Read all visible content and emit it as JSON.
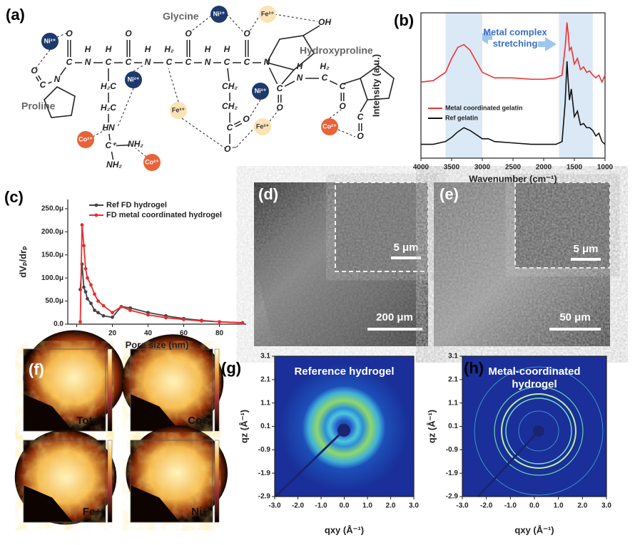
{
  "diagram": {
    "label": "(a)",
    "names": [
      "Glycine",
      "Hydroxyproline",
      "Proline"
    ],
    "atoms": [
      "O",
      "C",
      "N",
      "H",
      "C",
      "H",
      "C",
      "O",
      "N",
      "H",
      "C",
      "H₂",
      "C",
      "O",
      "N",
      "H",
      "C",
      "H",
      "C",
      "O",
      "N",
      "OH",
      "H₂C",
      "H₂C",
      "HN",
      "C⁺",
      "NH₂",
      "NH₂",
      "CH₂",
      "CH₂",
      "C",
      "O",
      "O⁻",
      "C",
      "O",
      "N",
      "H",
      "C",
      "H₂",
      "C",
      "O",
      "C",
      "O",
      "O",
      "C",
      "N"
    ],
    "ions": [
      "Ni²⁺",
      "Ni²⁺",
      "Fe²⁺",
      "Ni²⁺",
      "Fe²⁺",
      "Ni²⁺",
      "Fe²⁺",
      "Co²⁺",
      "Co²⁺",
      "Co²⁺"
    ]
  },
  "chart_data": [
    {
      "type": "line",
      "label": "(b)",
      "xlabel": "Wavenumber (cm⁻¹)",
      "ylabel": "Intensity (a.u.)",
      "annotation": [
        "Metal complex",
        "stretching"
      ],
      "x": [
        4000,
        3800,
        3600,
        3500,
        3400,
        3300,
        3200,
        3100,
        3000,
        2900,
        2800,
        2500,
        2200,
        2000,
        1800,
        1700,
        1650,
        1620,
        1600,
        1580,
        1550,
        1500,
        1450,
        1400,
        1350,
        1300,
        1250,
        1200,
        1150,
        1100,
        1050,
        1000
      ],
      "series": [
        {
          "name": "Metal coordinated gelatin",
          "color": "#f03030",
          "values": [
            0.55,
            0.56,
            0.62,
            0.72,
            0.8,
            0.82,
            0.78,
            0.7,
            0.62,
            0.6,
            0.58,
            0.58,
            0.57,
            0.57,
            0.58,
            0.6,
            0.8,
            0.98,
            0.9,
            0.78,
            0.8,
            0.68,
            0.72,
            0.64,
            0.66,
            0.62,
            0.63,
            0.6,
            0.58,
            0.6,
            0.55,
            0.6
          ]
        },
        {
          "name": "Ref gelatin",
          "color": "#111111",
          "values": [
            0.1,
            0.1,
            0.12,
            0.15,
            0.19,
            0.22,
            0.2,
            0.17,
            0.14,
            0.14,
            0.12,
            0.11,
            0.1,
            0.1,
            0.1,
            0.12,
            0.4,
            0.7,
            0.55,
            0.42,
            0.5,
            0.3,
            0.34,
            0.24,
            0.25,
            0.22,
            0.22,
            0.2,
            0.16,
            0.18,
            0.12,
            0.1
          ]
        }
      ],
      "xlim": [
        4000,
        1000
      ],
      "xticks": [
        4000,
        3500,
        3000,
        2500,
        2000,
        1500,
        1000
      ],
      "ylim": [
        0,
        1.05
      ],
      "highlight_ranges": [
        [
          3600,
          3000
        ],
        [
          1750,
          1200
        ]
      ],
      "highlight_color": "#dbe8f6",
      "legend": "lower left"
    },
    {
      "type": "line",
      "label": "(c)",
      "xlabel": "Pore size (nm)",
      "ylabel": "dVₚ/drₚ",
      "x": [
        2,
        3,
        4,
        5,
        6,
        8,
        10,
        12,
        15,
        20,
        25,
        30,
        40,
        50,
        60,
        70,
        80,
        93
      ],
      "series": [
        {
          "name": "Ref FD hydrogel",
          "color": "#444444",
          "values": [
            75,
            130,
            80,
            70,
            55,
            45,
            30,
            25,
            18,
            15,
            38,
            35,
            25,
            18,
            12,
            8,
            5,
            3
          ]
        },
        {
          "name": "FD metal coordinated hydrogel",
          "color": "#ee2a2a",
          "values": [
            5,
            215,
            170,
            120,
            100,
            85,
            65,
            50,
            40,
            25,
            38,
            30,
            20,
            14,
            10,
            7,
            5,
            3
          ]
        }
      ],
      "xlim": [
        -5,
        95
      ],
      "xticks": [
        0,
        20,
        40,
        60,
        80
      ],
      "ylim": [
        0,
        270
      ],
      "yticks": [
        {
          "value": 0,
          "label": "0.0"
        },
        {
          "value": 50,
          "label": "50.0μ"
        },
        {
          "value": 100,
          "label": "100.0μ"
        },
        {
          "value": 150,
          "label": "150.0μ"
        },
        {
          "value": 200,
          "label": "200.0μ"
        },
        {
          "value": 250,
          "label": "250.0μ"
        }
      ],
      "legend": "upper left"
    },
    {
      "type": "image",
      "label": "(g)",
      "title": [
        "Reference hydrogel"
      ],
      "xlabel": "qxy (Å⁻¹)",
      "ylabel": "qz (Å⁻¹)",
      "xlim": [
        -3,
        3
      ],
      "xticks": [
        {
          "value": -3,
          "label": "-3.0"
        },
        {
          "value": -2,
          "label": "-2.0"
        },
        {
          "value": -1,
          "label": "-1.0"
        },
        {
          "value": 0,
          "label": "0.0"
        },
        {
          "value": 1,
          "label": "1.0"
        },
        {
          "value": 2,
          "label": "2.0"
        },
        {
          "value": 3,
          "label": "3.0"
        }
      ],
      "ylim": [
        -2.9,
        3.1
      ],
      "yticks": [
        3.1,
        2.1,
        1.1,
        0.1,
        -0.9,
        -1.9,
        -2.9
      ]
    },
    {
      "type": "image",
      "label": "(h)",
      "title": [
        "Metal-coordinated",
        "hydrogel"
      ],
      "xlabel": "qxy (Å⁻¹)",
      "ylabel": "qz (Å⁻¹)",
      "xlim": [
        -3,
        3
      ],
      "xticks": [
        {
          "value": -3,
          "label": "-3.0"
        },
        {
          "value": -2,
          "label": "-2.0"
        },
        {
          "value": -1,
          "label": "-1.0"
        },
        {
          "value": 0,
          "label": "0.0"
        },
        {
          "value": 1,
          "label": "1.0"
        },
        {
          "value": 2,
          "label": "2.0"
        },
        {
          "value": 3,
          "label": "3.0"
        }
      ],
      "ylim": [
        -2.9,
        3.1
      ],
      "yticks": [
        3.1,
        2.1,
        1.1,
        0.1,
        -0.9,
        -1.9,
        -2.9
      ]
    }
  ],
  "images": {
    "d": {
      "label": "(d)",
      "scale_bars": [
        "5 μm",
        "200 μm"
      ]
    },
    "e": {
      "label": "(e)",
      "scale_bars": [
        "5 μm",
        "50 μm"
      ]
    },
    "f": {
      "label": "(f)",
      "maps": [
        "Total",
        "Co+",
        "Fe+",
        "Ni+"
      ]
    }
  }
}
